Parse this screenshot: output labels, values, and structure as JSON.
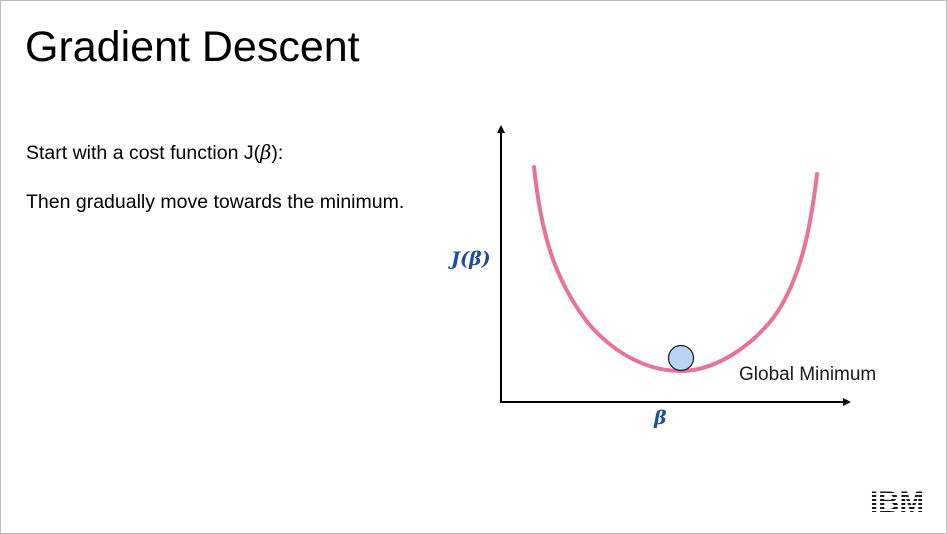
{
  "slide": {
    "title": "Gradient Descent",
    "line1_prefix": "Start with a cost function J(",
    "line1_symbol": "β",
    "line1_suffix": "):",
    "line2": "Then gradually move towards the minimum."
  },
  "diagram": {
    "y_axis_label": "J(β)",
    "x_axis_label": "β",
    "minimum_label": "Global Minimum",
    "curve_color": "#e8729a",
    "ball_fill": "#bcd3f5",
    "axis_label_color": "#1f4e9c"
  },
  "logo": {
    "brand": "IBM"
  }
}
